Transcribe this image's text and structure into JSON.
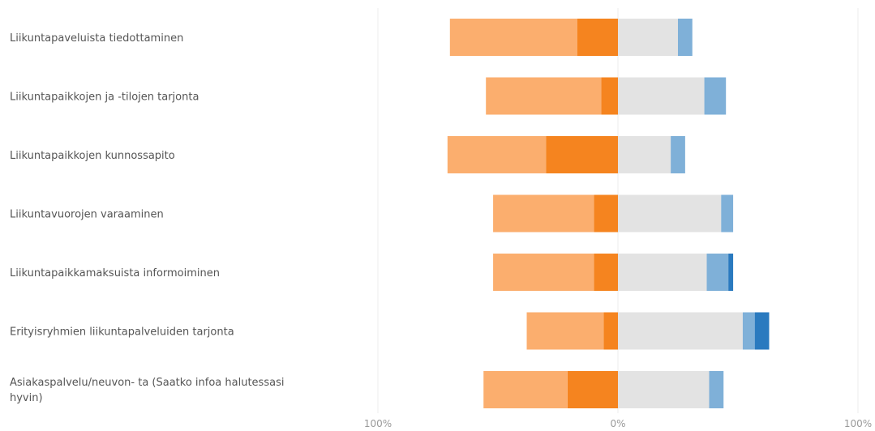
{
  "chart_data": {
    "type": "bar",
    "orientation": "horizontal",
    "stacked": true,
    "diverging": true,
    "grid": true,
    "xlim": [
      -100,
      100
    ],
    "ticks": [
      "100%",
      "0%",
      "100%"
    ],
    "categories": [
      [
        "Liikuntapaveluista tiedottaminen"
      ],
      [
        "Liikuntapaikkojen ja -tilojen tarjonta"
      ],
      [
        "Liikuntapaikkojen kunnossapito"
      ],
      [
        "Liikuntavuorojen varaaminen"
      ],
      [
        "Liikuntapaikkamaksuista informoiminen"
      ],
      [
        "Erityisryhmien liikuntapalveluiden tarjonta"
      ],
      [
        "Asiakaspalvelu/neuvon- ta (Saatko infoa halutessasi",
        "hyvin)"
      ]
    ],
    "series": [
      {
        "color": "#f5841f",
        "values": [
          -17,
          -7,
          -30,
          -10,
          -10,
          -6,
          -21
        ]
      },
      {
        "color": "#fbae6e",
        "values": [
          -53,
          -48,
          -41,
          -42,
          -42,
          -32,
          -35
        ]
      },
      {
        "color": "#e3e3e3",
        "values": [
          25,
          36,
          22,
          43,
          37,
          52,
          38
        ]
      },
      {
        "color": "#7fb0d8",
        "values": [
          6,
          9,
          6,
          5,
          9,
          5,
          6
        ]
      },
      {
        "color": "#2a7abf",
        "values": [
          0,
          0,
          0,
          0,
          2,
          6,
          0
        ]
      }
    ]
  }
}
